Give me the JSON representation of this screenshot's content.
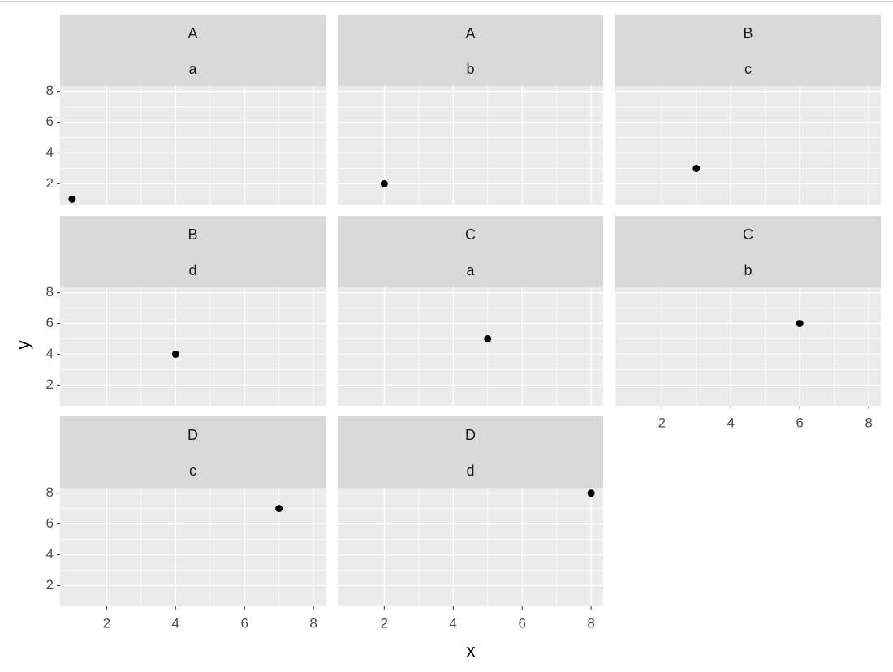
{
  "chart_data": [
    {
      "type": "scatter",
      "strip": [
        "A",
        "a"
      ],
      "x": [
        1
      ],
      "values": [
        1
      ],
      "color": "#000000",
      "xlim": [
        0.65,
        8.35
      ],
      "ylim": [
        0.65,
        8.35
      ],
      "xticks": [
        2,
        4,
        6,
        8
      ],
      "yticks": [
        2,
        4,
        6,
        8
      ],
      "xlabel": "x",
      "ylabel": "y"
    },
    {
      "type": "scatter",
      "strip": [
        "A",
        "b"
      ],
      "x": [
        2
      ],
      "values": [
        2
      ],
      "color": "#000000",
      "xlim": [
        0.65,
        8.35
      ],
      "ylim": [
        0.65,
        8.35
      ],
      "xticks": [
        2,
        4,
        6,
        8
      ],
      "yticks": [
        2,
        4,
        6,
        8
      ]
    },
    {
      "type": "scatter",
      "strip": [
        "B",
        "c"
      ],
      "x": [
        3
      ],
      "values": [
        3
      ],
      "color": "#000000",
      "xlim": [
        0.65,
        8.35
      ],
      "ylim": [
        0.65,
        8.35
      ],
      "xticks": [
        2,
        4,
        6,
        8
      ],
      "yticks": [
        2,
        4,
        6,
        8
      ]
    },
    {
      "type": "scatter",
      "strip": [
        "B",
        "d"
      ],
      "x": [
        4
      ],
      "values": [
        4
      ],
      "color": "#000000",
      "xlim": [
        0.65,
        8.35
      ],
      "ylim": [
        0.65,
        8.35
      ],
      "xticks": [
        2,
        4,
        6,
        8
      ],
      "yticks": [
        2,
        4,
        6,
        8
      ]
    },
    {
      "type": "scatter",
      "strip": [
        "C",
        "a"
      ],
      "x": [
        5
      ],
      "values": [
        5
      ],
      "color": "#000000",
      "xlim": [
        0.65,
        8.35
      ],
      "ylim": [
        0.65,
        8.35
      ],
      "xticks": [
        2,
        4,
        6,
        8
      ],
      "yticks": [
        2,
        4,
        6,
        8
      ]
    },
    {
      "type": "scatter",
      "strip": [
        "C",
        "b"
      ],
      "x": [
        6
      ],
      "values": [
        6
      ],
      "color": "#000000",
      "xlim": [
        0.65,
        8.35
      ],
      "ylim": [
        0.65,
        8.35
      ],
      "xticks": [
        2,
        4,
        6,
        8
      ],
      "yticks": [
        2,
        4,
        6,
        8
      ]
    },
    {
      "type": "scatter",
      "strip": [
        "D",
        "c"
      ],
      "x": [
        7
      ],
      "values": [
        7
      ],
      "color": "#000000",
      "xlim": [
        0.65,
        8.35
      ],
      "ylim": [
        0.65,
        8.35
      ],
      "xticks": [
        2,
        4,
        6,
        8
      ],
      "yticks": [
        2,
        4,
        6,
        8
      ]
    },
    {
      "type": "scatter",
      "strip": [
        "D",
        "d"
      ],
      "x": [
        8
      ],
      "values": [
        8
      ],
      "color": "#000000",
      "xlim": [
        0.65,
        8.35
      ],
      "ylim": [
        0.65,
        8.35
      ],
      "xticks": [
        2,
        4,
        6,
        8
      ],
      "yticks": [
        2,
        4,
        6,
        8
      ]
    }
  ]
}
